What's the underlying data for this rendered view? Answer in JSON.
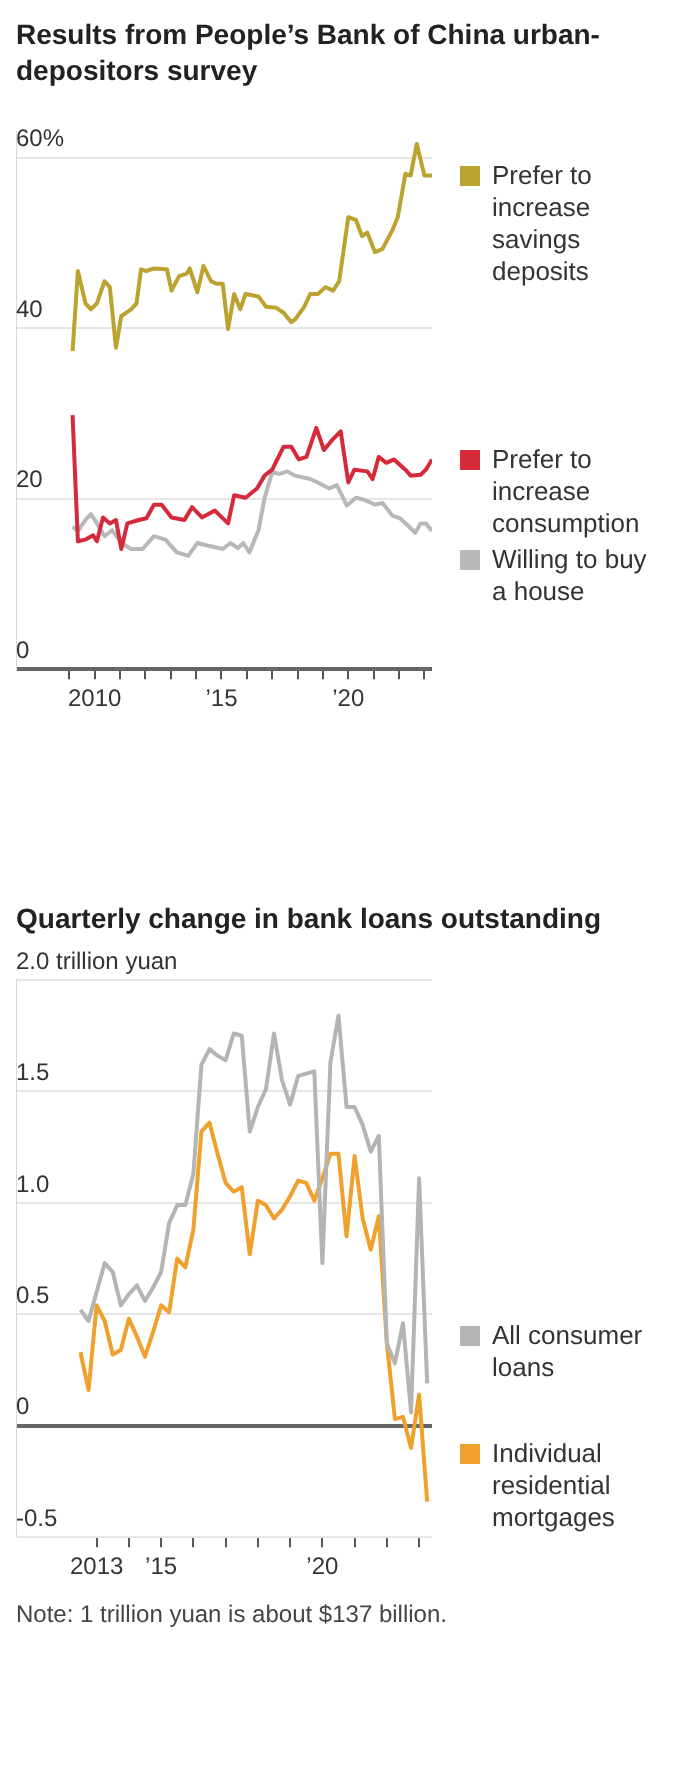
{
  "chart_data": [
    {
      "type": "line",
      "title": "Results from People’s Bank of China urban-depositors survey",
      "xlim": [
        2006.9,
        2023.3
      ],
      "xticks": [
        {
          "value": 2009,
          "label": null
        },
        {
          "value": 2010,
          "label": "2010"
        },
        {
          "value": 2011,
          "label": null
        },
        {
          "value": 2012,
          "label": null
        },
        {
          "value": 2013,
          "label": null
        },
        {
          "value": 2014,
          "label": null
        },
        {
          "value": 2015,
          "label": "’15"
        },
        {
          "value": 2016,
          "label": null
        },
        {
          "value": 2017,
          "label": null
        },
        {
          "value": 2018,
          "label": null
        },
        {
          "value": 2019,
          "label": null
        },
        {
          "value": 2020,
          "label": "’20"
        },
        {
          "value": 2021,
          "label": null
        },
        {
          "value": 2022,
          "label": null
        },
        {
          "value": 2023,
          "label": null
        }
      ],
      "ylim": [
        0,
        63
      ],
      "yticks": [
        0,
        20,
        40,
        {
          "value": 60,
          "label": "60%"
        }
      ],
      "grid": "y",
      "legend": "right",
      "marker": "none",
      "line_style": "solid",
      "series": [
        {
          "name": "Prefer to increase savings deposits",
          "color": "#bca22e",
          "x": [
            2009.13,
            2009.34,
            2009.64,
            2009.85,
            2010.09,
            2010.39,
            2010.6,
            2010.84,
            2011.05,
            2011.44,
            2011.65,
            2011.83,
            2012.04,
            2012.34,
            2012.85,
            2013.03,
            2013.33,
            2013.63,
            2013.75,
            2014.05,
            2014.29,
            2014.59,
            2014.8,
            2015.05,
            2015.26,
            2015.5,
            2015.74,
            2015.95,
            2016.46,
            2016.76,
            2017.15,
            2017.45,
            2017.75,
            2017.9,
            2018.26,
            2018.5,
            2018.8,
            2019.1,
            2019.4,
            2019.64,
            2020.0,
            2020.3,
            2020.54,
            2020.75,
            2021.05,
            2021.35,
            2021.74,
            2021.95,
            2022.25,
            2022.46,
            2022.7,
            2023.0,
            2023.3
          ],
          "values": [
            37.3,
            46.7,
            42.9,
            42.2,
            42.9,
            45.5,
            44.8,
            37.7,
            41.4,
            42.2,
            42.9,
            46.9,
            46.7,
            47.0,
            46.9,
            44.4,
            46.1,
            46.4,
            47.0,
            44.2,
            47.3,
            45.5,
            45.2,
            45.2,
            39.9,
            44.0,
            42.2,
            44.0,
            43.7,
            42.5,
            42.4,
            41.8,
            40.7,
            41.0,
            42.5,
            44.0,
            44.0,
            44.8,
            44.4,
            45.5,
            53.0,
            52.7,
            50.8,
            51.2,
            48.9,
            49.3,
            51.5,
            53.0,
            58.1,
            57.9,
            61.6,
            57.9,
            57.9
          ]
        },
        {
          "name": "Prefer to increase consumption",
          "color": "#d42a3a",
          "x": [
            2009.13,
            2009.34,
            2009.64,
            2009.94,
            2010.09,
            2010.33,
            2010.6,
            2010.84,
            2011.05,
            2011.29,
            2011.74,
            2012.04,
            2012.34,
            2012.64,
            2013.03,
            2013.54,
            2013.84,
            2014.23,
            2014.74,
            2015.26,
            2015.5,
            2015.95,
            2016.4,
            2016.7,
            2017.0,
            2017.45,
            2017.75,
            2018.05,
            2018.35,
            2018.74,
            2019.04,
            2019.34,
            2019.7,
            2020.0,
            2020.24,
            2020.75,
            2020.96,
            2021.2,
            2021.5,
            2021.8,
            2022.25,
            2022.46,
            2022.85,
            2023.06,
            2023.3
          ],
          "values": [
            29.8,
            15.0,
            15.2,
            15.7,
            15.0,
            17.8,
            17.1,
            17.5,
            14.1,
            17.1,
            17.5,
            17.7,
            19.3,
            19.3,
            17.8,
            17.5,
            19.0,
            17.8,
            18.6,
            17.1,
            20.4,
            20.1,
            21.2,
            22.7,
            23.4,
            26.1,
            26.1,
            24.6,
            24.9,
            28.3,
            25.7,
            26.8,
            27.9,
            21.9,
            23.4,
            23.2,
            22.3,
            24.9,
            24.2,
            24.6,
            23.4,
            22.7,
            22.8,
            23.4,
            24.6
          ]
        },
        {
          "name": "Willing to buy a house",
          "color": "#b8b8b8",
          "x": [
            2009.13,
            2009.34,
            2009.64,
            2009.85,
            2010.09,
            2010.39,
            2010.69,
            2011.05,
            2011.44,
            2011.89,
            2012.34,
            2012.79,
            2013.24,
            2013.69,
            2014.05,
            2014.44,
            2015.05,
            2015.35,
            2015.65,
            2015.86,
            2016.1,
            2016.46,
            2016.7,
            2017.0,
            2017.3,
            2017.6,
            2017.9,
            2018.5,
            2018.8,
            2019.25,
            2019.55,
            2019.94,
            2020.3,
            2020.6,
            2021.05,
            2021.35,
            2021.74,
            2022.04,
            2022.4,
            2022.64,
            2022.85,
            2023.06,
            2023.3
          ],
          "values": [
            16.7,
            16.2,
            17.5,
            18.2,
            17.1,
            15.6,
            16.3,
            14.8,
            14.1,
            14.1,
            15.6,
            15.2,
            13.7,
            13.3,
            14.8,
            14.5,
            14.1,
            14.8,
            14.2,
            14.8,
            13.7,
            16.3,
            20.1,
            23.1,
            22.9,
            23.2,
            22.7,
            22.3,
            21.9,
            21.2,
            21.6,
            19.2,
            20.1,
            19.9,
            19.3,
            19.5,
            18.0,
            17.7,
            16.7,
            16.0,
            17.1,
            17.1,
            16.2
          ]
        }
      ]
    },
    {
      "type": "line",
      "title": "Quarterly change in bank loans outstanding",
      "annotations": [
        "Note: 1 trillion yuan is about $137 billion."
      ],
      "xlim": [
        2010.5,
        2023.4
      ],
      "xticks": [
        {
          "value": 2013,
          "label": "2013"
        },
        {
          "value": 2014,
          "label": null
        },
        {
          "value": 2015,
          "label": "’15"
        },
        {
          "value": 2016,
          "label": null
        },
        {
          "value": 2017,
          "label": null
        },
        {
          "value": 2018,
          "label": null
        },
        {
          "value": 2019,
          "label": null
        },
        {
          "value": 2020,
          "label": "’20"
        },
        {
          "value": 2021,
          "label": null
        },
        {
          "value": 2022,
          "label": null
        },
        {
          "value": 2023,
          "label": null
        }
      ],
      "ylim": [
        -0.5,
        2.0
      ],
      "yticks": [
        {
          "value": -0.5,
          "label": "-0.5"
        },
        {
          "value": 0,
          "label": "0"
        },
        {
          "value": 0.5,
          "label": "0.5"
        },
        {
          "value": 1,
          "label": "1.0"
        },
        {
          "value": 1.5,
          "label": "1.5"
        },
        {
          "value": 2,
          "label": "2.0 trillion yuan"
        }
      ],
      "grid": "y",
      "legend": "right",
      "marker": "none",
      "line_style": "solid",
      "series": [
        {
          "name": "All consumer loans",
          "color": "#b4b4b4",
          "x": [
            2012.5,
            2012.75,
            2013.0,
            2013.25,
            2013.5,
            2013.75,
            2014.0,
            2014.25,
            2014.5,
            2014.75,
            2015.0,
            2015.25,
            2015.5,
            2015.75,
            2016.0,
            2016.25,
            2016.5,
            2016.75,
            2017.0,
            2017.25,
            2017.5,
            2017.75,
            2018.0,
            2018.25,
            2018.5,
            2018.75,
            2019.0,
            2019.25,
            2019.5,
            2019.75,
            2020.0,
            2020.25,
            2020.5,
            2020.75,
            2021.0,
            2021.25,
            2021.5,
            2021.75,
            2022.0,
            2022.25,
            2022.5,
            2022.75,
            2023.0,
            2023.25
          ],
          "values": [
            0.52,
            0.47,
            0.6,
            0.73,
            0.69,
            0.54,
            0.59,
            0.63,
            0.56,
            0.62,
            0.69,
            0.91,
            0.99,
            0.99,
            1.13,
            1.62,
            1.69,
            1.66,
            1.64,
            1.76,
            1.75,
            1.32,
            1.43,
            1.51,
            1.76,
            1.55,
            1.44,
            1.57,
            1.58,
            1.59,
            0.73,
            1.63,
            1.84,
            1.43,
            1.43,
            1.35,
            1.23,
            1.3,
            0.37,
            0.28,
            0.46,
            0.06,
            1.11,
            0.19
          ]
        },
        {
          "name": "Individual residential mortgages",
          "color": "#f0a02c",
          "x": [
            2012.5,
            2012.75,
            2013.0,
            2013.25,
            2013.5,
            2013.75,
            2014.0,
            2014.25,
            2014.5,
            2014.75,
            2015.0,
            2015.25,
            2015.5,
            2015.75,
            2016.0,
            2016.25,
            2016.5,
            2016.75,
            2017.0,
            2017.25,
            2017.5,
            2017.75,
            2018.0,
            2018.25,
            2018.5,
            2018.75,
            2019.0,
            2019.25,
            2019.5,
            2019.75,
            2020.0,
            2020.25,
            2020.5,
            2020.75,
            2021.0,
            2021.25,
            2021.5,
            2021.75,
            2022.0,
            2022.25,
            2022.5,
            2022.75,
            2023.0,
            2023.25
          ],
          "values": [
            0.33,
            0.16,
            0.54,
            0.47,
            0.32,
            0.34,
            0.48,
            0.4,
            0.31,
            0.42,
            0.54,
            0.51,
            0.75,
            0.71,
            0.88,
            1.32,
            1.36,
            1.22,
            1.09,
            1.05,
            1.07,
            0.77,
            1.01,
            0.99,
            0.93,
            0.97,
            1.03,
            1.1,
            1.09,
            1.01,
            1.11,
            1.22,
            1.22,
            0.85,
            1.21,
            0.93,
            0.79,
            0.94,
            0.37,
            0.03,
            0.04,
            -0.1,
            0.14,
            -0.34
          ]
        }
      ]
    }
  ]
}
